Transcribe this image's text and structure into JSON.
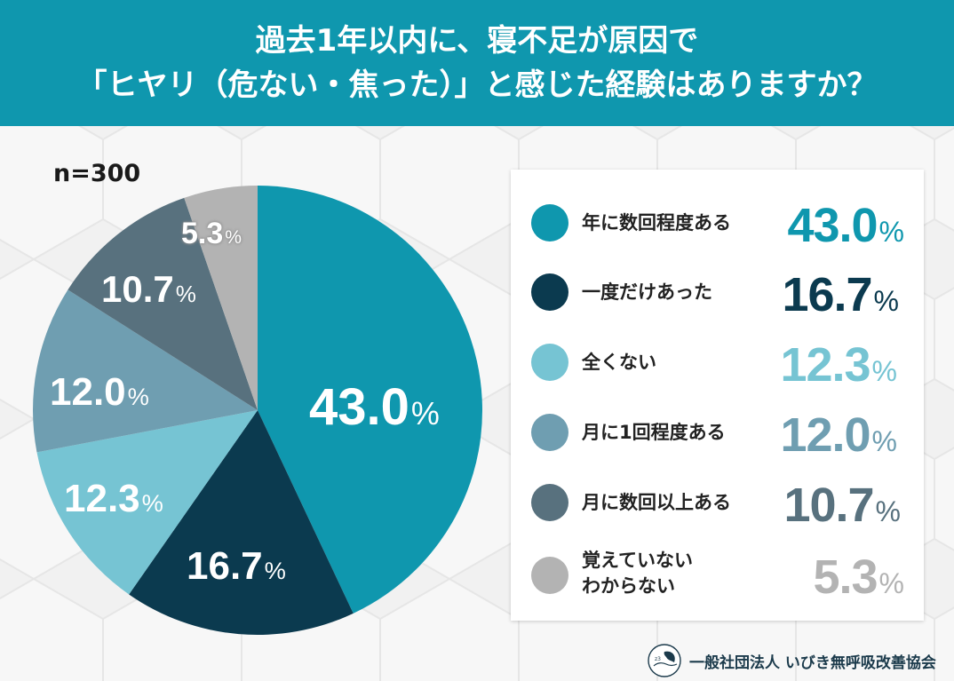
{
  "header": {
    "title_line1": "過去1年以内に、寝不足が原因で",
    "title_line2": "「ヒヤリ（危ない・焦った）」と感じた経験はありますか？"
  },
  "sample_size": "n=300",
  "footer": {
    "organization": "一般社団法人 いびき無呼吸改善協会",
    "logo_icon": "sleeping-person-logo-icon"
  },
  "colors": {
    "header_bg": "#0f97ae",
    "background": "#f4f4f4"
  },
  "legend": {
    "items": [
      {
        "label": "年に数回程度ある",
        "value": "43.0",
        "unit": "%",
        "color": "#0f97ae"
      },
      {
        "label": "一度だけあった",
        "value": "16.7",
        "unit": "%",
        "color": "#0b3a4f"
      },
      {
        "label": "全くない",
        "value": "12.3",
        "unit": "%",
        "color": "#76c4d3"
      },
      {
        "label": "月に1回程度ある",
        "value": "12.0",
        "unit": "%",
        "color": "#6f9eb1"
      },
      {
        "label": "月に数回以上ある",
        "value": "10.7",
        "unit": "%",
        "color": "#58717e"
      },
      {
        "label": "覚えていない\nわからない",
        "label_line1": "覚えていない",
        "label_line2": "わからない",
        "value": "5.3",
        "unit": "%",
        "color": "#b3b3b3"
      }
    ]
  },
  "chart_data": {
    "type": "pie",
    "title": "過去1年以内に、寝不足が原因で「ヒヤリ（危ない・焦った）」と感じた経験はありますか？",
    "subtitle": "n=300",
    "categories": [
      "年に数回程度ある",
      "一度だけあった",
      "全くない",
      "月に1回程度ある",
      "月に数回以上ある",
      "覚えていない・わからない"
    ],
    "values": [
      43.0,
      16.7,
      12.3,
      12.0,
      10.7,
      5.3
    ],
    "unit": "%",
    "colors": [
      "#0f97ae",
      "#0b3a4f",
      "#76c4d3",
      "#6f9eb1",
      "#58717e",
      "#b3b3b3"
    ],
    "start_angle": "12 o'clock",
    "direction": "clockwise",
    "data_labels": [
      "43.0%",
      "16.7%",
      "12.3%",
      "12.0%",
      "10.7%",
      "5.3%"
    ],
    "legend_position": "right"
  }
}
